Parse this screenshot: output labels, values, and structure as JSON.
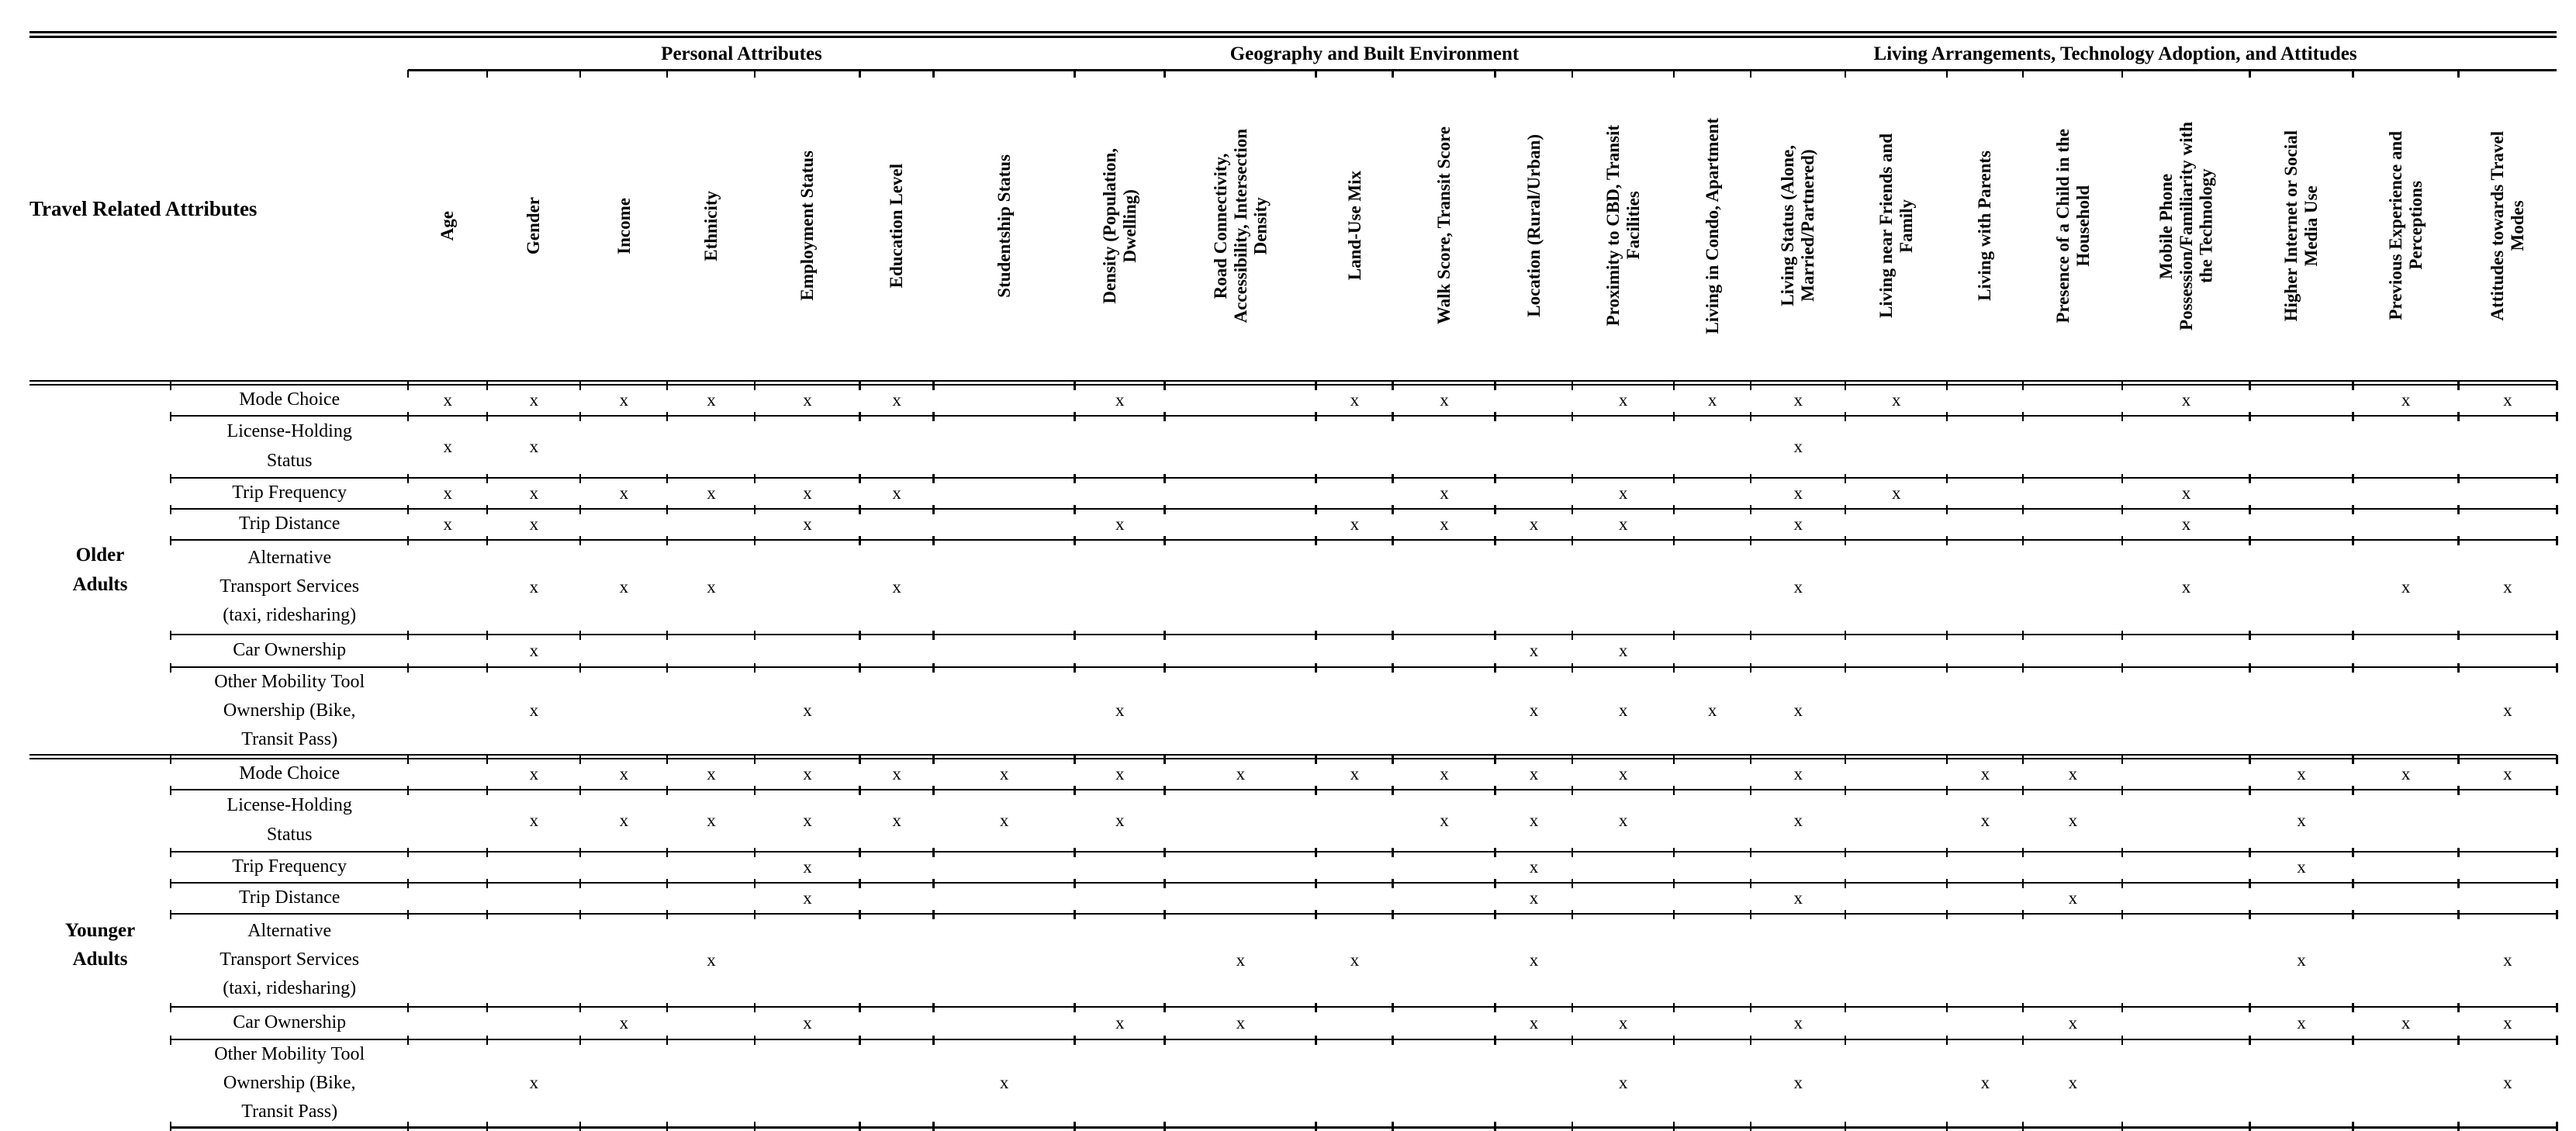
{
  "corner_title": "Travel Related Attributes",
  "mark_symbol": "x",
  "groups": [
    {
      "label": "Personal Attributes",
      "span": 7
    },
    {
      "label": "Geography and Built Environment",
      "span": 6
    },
    {
      "label": "Living Arrangements, Technology Adoption, and Attitudes",
      "span": 9
    }
  ],
  "columns": [
    "Age",
    "Gender",
    "Income",
    "Ethnicity",
    "Employment Status",
    "Education Level",
    "Studentship Status",
    "Density (Population,\nDwelling)",
    "Road Connectivity,\nAccessibility, Intersection\nDensity",
    "Land-Use Mix",
    "Walk Score, Transit Score",
    "Location (Rural/Urban)",
    "Proximity to CBD, Transit\nFacilities",
    "Living in Condo, Apartment",
    "Living Status (Alone,\nMarried/Partnered)",
    "Living near Friends and\nFamily",
    "Living with Parents",
    "Presence of a Child in the\nHousehold",
    "Mobile Phone\nPossession/Familiarity with\nthe Technology",
    "Higher Internet or Social\nMedia Use",
    "Previous Experience and\nPerceptions",
    "Attitudes towards Travel\nModes"
  ],
  "row_groups": [
    {
      "label": "Older\nAdults",
      "rows": [
        {
          "label": "Mode Choice",
          "marks": [
            "x",
            "x",
            "x",
            "x",
            "x",
            "x",
            "",
            "x",
            "",
            "x",
            "x",
            "",
            "x",
            "x",
            "x",
            "x",
            "",
            "",
            "x",
            "",
            "x",
            "x"
          ]
        },
        {
          "label": "License-Holding\nStatus",
          "marks": [
            "x",
            "x",
            "",
            "",
            "",
            "",
            "",
            "",
            "",
            "",
            "",
            "",
            "",
            "",
            "x",
            "",
            "",
            "",
            "",
            "",
            "",
            ""
          ]
        },
        {
          "label": "Trip Frequency",
          "marks": [
            "x",
            "x",
            "x",
            "x",
            "x",
            "x",
            "",
            "",
            "",
            "",
            "x",
            "",
            "x",
            "",
            "x",
            "x",
            "",
            "",
            "x",
            "",
            "",
            ""
          ]
        },
        {
          "label": "Trip Distance",
          "marks": [
            "x",
            "x",
            "",
            "",
            "x",
            "",
            "",
            "x",
            "",
            "x",
            "x",
            "x",
            "x",
            "",
            "x",
            "",
            "",
            "",
            "x",
            "",
            "",
            ""
          ]
        },
        {
          "label": "Alternative\nTransport Services\n(taxi, ridesharing)",
          "marks": [
            "",
            "x",
            "x",
            "x",
            "",
            "x",
            "",
            "",
            "",
            "",
            "",
            "",
            "",
            "",
            "x",
            "",
            "",
            "",
            "x",
            "",
            "x",
            "x"
          ]
        },
        {
          "label": "Car Ownership",
          "marks": [
            "",
            "x",
            "",
            "",
            "",
            "",
            "",
            "",
            "",
            "",
            "",
            "x",
            "x",
            "",
            "",
            "",
            "",
            "",
            "",
            "",
            "",
            ""
          ]
        },
        {
          "label": "Other Mobility Tool\nOwnership (Bike,\nTransit Pass)",
          "marks": [
            "",
            "x",
            "",
            "",
            "x",
            "",
            "",
            "x",
            "",
            "",
            "",
            "x",
            "x",
            "x",
            "x",
            "",
            "",
            "",
            "",
            "",
            "",
            "x"
          ]
        }
      ]
    },
    {
      "label": "Younger\nAdults",
      "rows": [
        {
          "label": "Mode Choice",
          "marks": [
            "",
            "x",
            "x",
            "x",
            "x",
            "x",
            "x",
            "x",
            "x",
            "x",
            "x",
            "x",
            "x",
            "",
            "x",
            "",
            "x",
            "x",
            "",
            "x",
            "x",
            "x"
          ]
        },
        {
          "label": "License-Holding\nStatus",
          "marks": [
            "",
            "x",
            "x",
            "x",
            "x",
            "x",
            "x",
            "x",
            "",
            "",
            "x",
            "x",
            "x",
            "",
            "x",
            "",
            "x",
            "x",
            "",
            "x",
            "",
            ""
          ]
        },
        {
          "label": "Trip Frequency",
          "marks": [
            "",
            "",
            "",
            "",
            "x",
            "",
            "",
            "",
            "",
            "",
            "",
            "x",
            "",
            "",
            "",
            "",
            "",
            "",
            "",
            "x",
            "",
            ""
          ]
        },
        {
          "label": "Trip Distance",
          "marks": [
            "",
            "",
            "",
            "",
            "x",
            "",
            "",
            "",
            "",
            "",
            "",
            "x",
            "",
            "",
            "x",
            "",
            "",
            "x",
            "",
            "",
            "",
            ""
          ]
        },
        {
          "label": "Alternative\nTransport Services\n(taxi, ridesharing)",
          "marks": [
            "",
            "",
            "",
            "x",
            "",
            "",
            "",
            "",
            "x",
            "x",
            "",
            "x",
            "",
            "",
            "",
            "",
            "",
            "",
            "",
            "x",
            "",
            "x"
          ]
        },
        {
          "label": "Car Ownership",
          "marks": [
            "",
            "",
            "x",
            "",
            "x",
            "",
            "",
            "x",
            "x",
            "",
            "",
            "x",
            "x",
            "",
            "x",
            "",
            "",
            "x",
            "",
            "x",
            "x",
            "x"
          ]
        },
        {
          "label": "Other Mobility Tool\nOwnership (Bike,\nTransit Pass)",
          "marks": [
            "",
            "x",
            "",
            "",
            "",
            "",
            "x",
            "",
            "",
            "",
            "",
            "",
            "x",
            "",
            "x",
            "",
            "x",
            "x",
            "",
            "",
            "",
            "x"
          ]
        }
      ]
    }
  ]
}
